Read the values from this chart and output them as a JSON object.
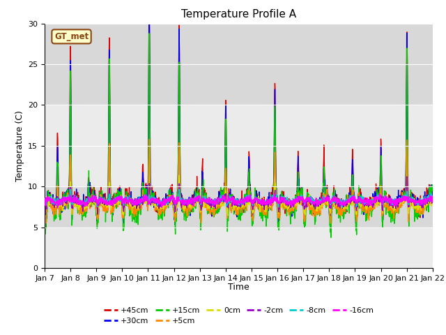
{
  "title": "Temperature Profile A",
  "xlabel": "Time",
  "ylabel": "Temperature (C)",
  "ylim": [
    0,
    30
  ],
  "yticks": [
    0,
    5,
    10,
    15,
    20,
    25,
    30
  ],
  "n_days": 15,
  "x_tick_labels": [
    "Jan 7",
    "Jan 8",
    "Jan 9",
    "Jan 10",
    "Jan 11",
    "Jan 12",
    "Jan 13",
    "Jan 14",
    "Jan 15",
    "Jan 16",
    "Jan 17",
    "Jan 18",
    "Jan 19",
    "Jan 20",
    "Jan 21",
    "Jan 22"
  ],
  "series_labels": [
    "+45cm",
    "+30cm",
    "+15cm",
    "+5cm",
    "0cm",
    "-2cm",
    "-8cm",
    "-16cm"
  ],
  "series_colors": [
    "#dd0000",
    "#0000ee",
    "#00cc00",
    "#ff8800",
    "#dddd00",
    "#9900cc",
    "#00cccc",
    "#ff00ff"
  ],
  "series_linewidths": [
    1.0,
    1.0,
    1.0,
    1.0,
    1.0,
    1.0,
    1.0,
    1.2
  ],
  "annotation_text": "GT_met",
  "annotation_fg": "#8B4513",
  "annotation_bg": "#ffffcc",
  "bg_color_light": "#ebebeb",
  "bg_color_dark": "#d8d8d8",
  "title_fontsize": 11,
  "axis_fontsize": 9,
  "tick_fontsize": 8
}
